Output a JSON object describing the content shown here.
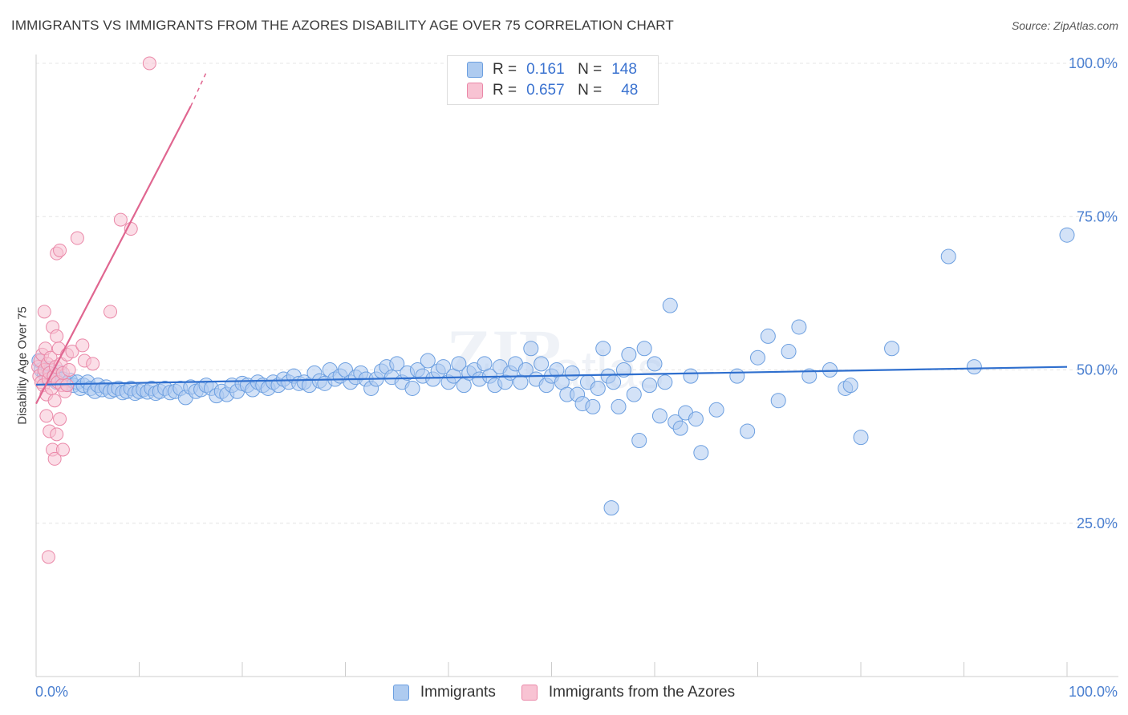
{
  "title": "IMMIGRANTS VS IMMIGRANTS FROM THE AZORES DISABILITY AGE OVER 75 CORRELATION CHART",
  "source": "Source: ZipAtlas.com",
  "colors": {
    "blue_fill": "#aecbf0",
    "blue_stroke": "#6c9fe0",
    "blue_line": "#2f6fce",
    "pink_fill": "#f8c3d3",
    "pink_stroke": "#ea88a8",
    "pink_line": "#e06690",
    "axis_label": "#4a7fd0",
    "grid": "#e4e4e4"
  },
  "legend": {
    "r_label": "R =",
    "n_label": "N =",
    "series": [
      {
        "r": "0.161",
        "n": "148"
      },
      {
        "r": "0.657",
        "n": "48"
      }
    ]
  },
  "chart_data": {
    "type": "scatter",
    "title": "IMMIGRANTS VS IMMIGRANTS FROM THE AZORES DISABILITY AGE OVER 75 CORRELATION CHART",
    "xlabel": "",
    "ylabel": "Disability Age Over 75",
    "xlim": [
      0,
      100
    ],
    "ylim": [
      0,
      100
    ],
    "x_tick_labels": [
      "0.0%",
      "100.0%"
    ],
    "y_tick_labels": [
      {
        "value": 25,
        "label": "25.0%"
      },
      {
        "value": 50,
        "label": "50.0%"
      },
      {
        "value": 75,
        "label": "75.0%"
      },
      {
        "value": 100,
        "label": "100.0%"
      }
    ],
    "legend_position": "top-center",
    "series": [
      {
        "name": "Immigrants",
        "color": "#aecbf0",
        "r": 0.161,
        "n": 148,
        "trend": {
          "x0": 0,
          "y0": 47.6,
          "x1": 100,
          "y1": 50.5
        },
        "points": [
          [
            0.3,
            51.5
          ],
          [
            0.5,
            50.0
          ],
          [
            0.8,
            49.5
          ],
          [
            1.0,
            48.8
          ],
          [
            1.2,
            50.2
          ],
          [
            1.5,
            48.5
          ],
          [
            1.8,
            49.2
          ],
          [
            2.0,
            48.0
          ],
          [
            2.3,
            49.6
          ],
          [
            2.6,
            48.5
          ],
          [
            3.0,
            47.8
          ],
          [
            3.3,
            48.3
          ],
          [
            3.6,
            47.5
          ],
          [
            4.0,
            48.0
          ],
          [
            4.3,
            47.0
          ],
          [
            4.6,
            47.5
          ],
          [
            5.0,
            48.0
          ],
          [
            5.3,
            47.0
          ],
          [
            5.7,
            46.5
          ],
          [
            6.0,
            47.5
          ],
          [
            6.4,
            46.8
          ],
          [
            6.8,
            47.2
          ],
          [
            7.2,
            46.5
          ],
          [
            7.6,
            46.8
          ],
          [
            8.0,
            47.0
          ],
          [
            8.4,
            46.3
          ],
          [
            8.8,
            46.5
          ],
          [
            9.2,
            47.0
          ],
          [
            9.6,
            46.2
          ],
          [
            10.0,
            46.5
          ],
          [
            10.4,
            46.8
          ],
          [
            10.8,
            46.4
          ],
          [
            11.2,
            47.0
          ],
          [
            11.6,
            46.2
          ],
          [
            12.0,
            46.5
          ],
          [
            12.5,
            47.0
          ],
          [
            13.0,
            46.3
          ],
          [
            13.5,
            46.5
          ],
          [
            14.0,
            47.0
          ],
          [
            14.5,
            45.5
          ],
          [
            15.0,
            47.2
          ],
          [
            15.5,
            46.5
          ],
          [
            16.0,
            46.8
          ],
          [
            16.5,
            47.5
          ],
          [
            17.0,
            47.0
          ],
          [
            17.5,
            45.8
          ],
          [
            18.0,
            46.5
          ],
          [
            18.5,
            46.0
          ],
          [
            19.0,
            47.5
          ],
          [
            19.5,
            46.5
          ],
          [
            20.0,
            47.8
          ],
          [
            20.5,
            47.5
          ],
          [
            21.0,
            46.8
          ],
          [
            21.5,
            48.0
          ],
          [
            22.0,
            47.5
          ],
          [
            22.5,
            47.0
          ],
          [
            23.0,
            48.0
          ],
          [
            23.5,
            47.5
          ],
          [
            24.0,
            48.5
          ],
          [
            24.5,
            48.0
          ],
          [
            25.0,
            49.0
          ],
          [
            25.5,
            47.8
          ],
          [
            26.0,
            48.0
          ],
          [
            26.5,
            47.5
          ],
          [
            27.0,
            49.5
          ],
          [
            27.5,
            48.2
          ],
          [
            28.0,
            47.8
          ],
          [
            28.5,
            50.0
          ],
          [
            29.0,
            48.5
          ],
          [
            29.5,
            49.0
          ],
          [
            30.0,
            50.0
          ],
          [
            30.5,
            48.0
          ],
          [
            31.0,
            48.8
          ],
          [
            31.5,
            49.5
          ],
          [
            32.0,
            48.5
          ],
          [
            32.5,
            47.0
          ],
          [
            33.0,
            48.5
          ],
          [
            33.5,
            49.8
          ],
          [
            34.0,
            50.5
          ],
          [
            34.5,
            48.8
          ],
          [
            35.0,
            51.0
          ],
          [
            35.5,
            48.0
          ],
          [
            36.0,
            49.5
          ],
          [
            36.5,
            47.0
          ],
          [
            37.0,
            50.0
          ],
          [
            37.5,
            49.0
          ],
          [
            38.0,
            51.5
          ],
          [
            38.5,
            48.5
          ],
          [
            39.0,
            49.8
          ],
          [
            39.5,
            50.5
          ],
          [
            40.0,
            48.0
          ],
          [
            40.5,
            49.0
          ],
          [
            41.0,
            51.0
          ],
          [
            41.5,
            47.5
          ],
          [
            42.0,
            49.5
          ],
          [
            42.5,
            50.0
          ],
          [
            43.0,
            48.5
          ],
          [
            43.5,
            51.0
          ],
          [
            44.0,
            49.0
          ],
          [
            44.5,
            47.5
          ],
          [
            45.0,
            50.5
          ],
          [
            45.5,
            48.0
          ],
          [
            46.0,
            49.5
          ],
          [
            46.5,
            51.0
          ],
          [
            47.0,
            48.0
          ],
          [
            47.5,
            50.0
          ],
          [
            48.0,
            53.5
          ],
          [
            48.5,
            48.5
          ],
          [
            49.0,
            51.0
          ],
          [
            49.5,
            47.5
          ],
          [
            50.0,
            49.0
          ],
          [
            50.5,
            50.0
          ],
          [
            51.0,
            48.0
          ],
          [
            51.5,
            46.0
          ],
          [
            52.0,
            49.5
          ],
          [
            52.5,
            46.0
          ],
          [
            53.0,
            44.5
          ],
          [
            53.5,
            48.0
          ],
          [
            54.0,
            44.0
          ],
          [
            54.5,
            47.0
          ],
          [
            55.0,
            53.5
          ],
          [
            55.5,
            49.0
          ],
          [
            56.0,
            48.0
          ],
          [
            56.5,
            44.0
          ],
          [
            57.0,
            50.0
          ],
          [
            57.5,
            52.5
          ],
          [
            58.0,
            46.0
          ],
          [
            58.5,
            38.5
          ],
          [
            59.0,
            53.5
          ],
          [
            59.5,
            47.5
          ],
          [
            60.0,
            51.0
          ],
          [
            60.5,
            42.5
          ],
          [
            61.0,
            48.0
          ],
          [
            61.5,
            60.5
          ],
          [
            62.0,
            41.5
          ],
          [
            62.5,
            40.5
          ],
          [
            63.0,
            43.0
          ],
          [
            63.5,
            49.0
          ],
          [
            64.0,
            42.0
          ],
          [
            64.5,
            36.5
          ],
          [
            66.0,
            43.5
          ],
          [
            68.0,
            49.0
          ],
          [
            69.0,
            40.0
          ],
          [
            70.0,
            52.0
          ],
          [
            71.0,
            55.5
          ],
          [
            72.0,
            45.0
          ],
          [
            73.0,
            53.0
          ],
          [
            74.0,
            57.0
          ],
          [
            75.0,
            49.0
          ],
          [
            77.0,
            50.0
          ],
          [
            78.5,
            47.0
          ],
          [
            79.0,
            47.5
          ],
          [
            80.0,
            39.0
          ],
          [
            83.0,
            53.5
          ],
          [
            88.5,
            68.5
          ],
          [
            91.0,
            50.5
          ],
          [
            100.0,
            72.0
          ],
          [
            55.8,
            27.5
          ]
        ]
      },
      {
        "name": "Immigrants from the Azores",
        "color": "#f8c3d3",
        "r": 0.657,
        "n": 48,
        "trend": {
          "x0": 0,
          "y0": 44.5,
          "x1": 15,
          "y1": 93.0,
          "dash_to_x": 16.5,
          "dash_to_y": 98.5
        },
        "points": [
          [
            0.2,
            50.5
          ],
          [
            0.3,
            49.0
          ],
          [
            0.4,
            51.5
          ],
          [
            0.5,
            48.0
          ],
          [
            0.6,
            52.5
          ],
          [
            0.7,
            47.5
          ],
          [
            0.8,
            50.0
          ],
          [
            0.9,
            53.5
          ],
          [
            1.0,
            46.0
          ],
          [
            1.1,
            51.0
          ],
          [
            1.2,
            48.5
          ],
          [
            1.3,
            49.5
          ],
          [
            1.4,
            52.0
          ],
          [
            1.5,
            47.0
          ],
          [
            1.6,
            57.0
          ],
          [
            1.7,
            49.0
          ],
          [
            1.8,
            45.0
          ],
          [
            1.9,
            50.5
          ],
          [
            2.0,
            55.5
          ],
          [
            2.1,
            48.0
          ],
          [
            0.8,
            59.5
          ],
          [
            2.2,
            53.5
          ],
          [
            2.4,
            51.0
          ],
          [
            2.5,
            47.5
          ],
          [
            2.6,
            49.5
          ],
          [
            2.8,
            46.5
          ],
          [
            3.0,
            52.5
          ],
          [
            3.2,
            50.0
          ],
          [
            3.5,
            53.0
          ],
          [
            1.0,
            42.5
          ],
          [
            1.3,
            40.0
          ],
          [
            1.6,
            37.0
          ],
          [
            1.8,
            35.5
          ],
          [
            2.0,
            39.5
          ],
          [
            2.3,
            42.0
          ],
          [
            2.6,
            37.0
          ],
          [
            3.0,
            47.5
          ],
          [
            4.5,
            54.0
          ],
          [
            4.7,
            51.5
          ],
          [
            5.5,
            51.0
          ],
          [
            2.0,
            69.0
          ],
          [
            2.3,
            69.5
          ],
          [
            4.0,
            71.5
          ],
          [
            7.2,
            59.5
          ],
          [
            8.2,
            74.5
          ],
          [
            9.2,
            73.0
          ],
          [
            11.0,
            100.0
          ],
          [
            1.2,
            19.5
          ]
        ]
      }
    ]
  }
}
